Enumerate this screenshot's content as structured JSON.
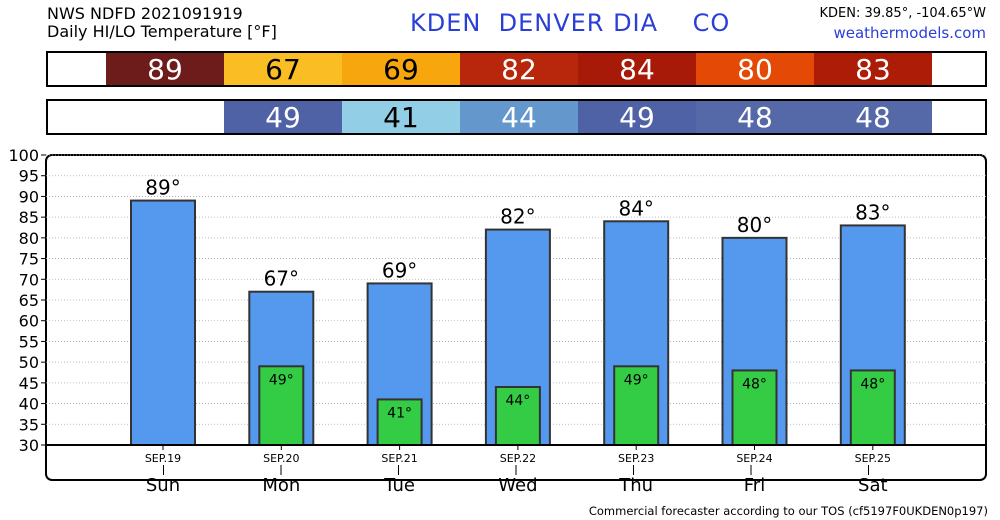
{
  "header": {
    "line1": "NWS NDFD 2021091919",
    "line2": "Daily HI/LO Temperature [°F]",
    "station": "KDEN  DENVER DIA    CO",
    "coords": "KDEN: 39.85°, -104.65°W",
    "website": "weathermodels.com"
  },
  "footer": "Commercial forecaster according to our TOS (cf5197F0UKDEN0p197)",
  "hi_strip": [
    {
      "label": "89",
      "color": "#6e1b1b"
    },
    {
      "label": "67",
      "color": "#fbbd24"
    },
    {
      "label": "69",
      "color": "#f7a60e"
    },
    {
      "label": "82",
      "color": "#b8260b"
    },
    {
      "label": "84",
      "color": "#a81a08"
    },
    {
      "label": "80",
      "color": "#e44a06"
    },
    {
      "label": "83",
      "color": "#ac1c07"
    }
  ],
  "lo_strip": [
    {
      "label": "",
      "color": "#ffffff"
    },
    {
      "label": "49",
      "color": "#5062a6"
    },
    {
      "label": "41",
      "color": "#92cfe7"
    },
    {
      "label": "44",
      "color": "#6497cb"
    },
    {
      "label": "49",
      "color": "#5062a6"
    },
    {
      "label": "48",
      "color": "#5568a8"
    },
    {
      "label": "48",
      "color": "#5568a8"
    }
  ],
  "chart_data": {
    "type": "bar",
    "categories": [
      "Sun",
      "Mon",
      "Tue",
      "Wed",
      "Thu",
      "Fri",
      "Sat"
    ],
    "dates": [
      "SEP.19",
      "SEP.20",
      "SEP.21",
      "SEP.22",
      "SEP.23",
      "SEP.24",
      "SEP.25"
    ],
    "series": [
      {
        "values": [
          89,
          67,
          69,
          82,
          84,
          80,
          83
        ],
        "color": "#5599ee",
        "labels": [
          "89°",
          "67°",
          "69°",
          "82°",
          "84°",
          "80°",
          "83°"
        ]
      },
      {
        "values": [
          null,
          49,
          41,
          44,
          49,
          48,
          48
        ],
        "color": "#33cc44",
        "labels": [
          "",
          "49°",
          "41°",
          "44°",
          "49°",
          "48°",
          "48°"
        ]
      }
    ],
    "ylim": [
      30,
      100
    ],
    "yticks": [
      "100",
      "95",
      "90",
      "85",
      "80",
      "75",
      "70",
      "65",
      "60",
      "55",
      "50",
      "45",
      "40",
      "35",
      "30"
    ],
    "grid": true
  }
}
